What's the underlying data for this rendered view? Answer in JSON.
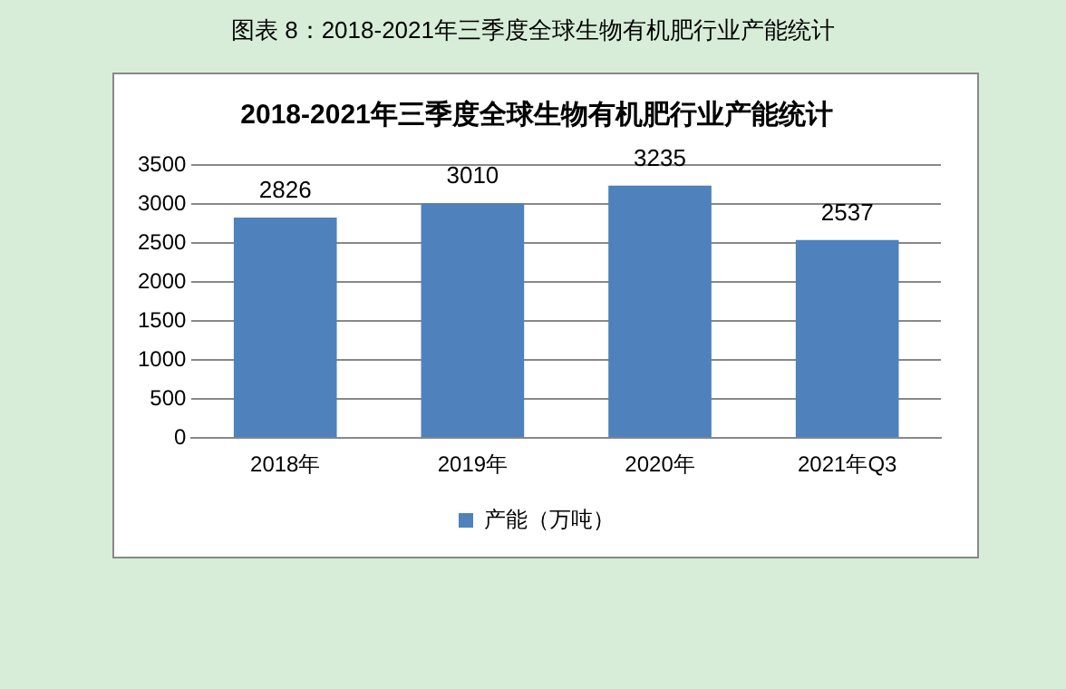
{
  "chart_data": {
    "type": "bar",
    "title": "2018-2021年三季度全球生物有机肥行业产能统计",
    "annotations": [
      "图表 8：2018-2021年三季度全球生物有机肥行业产能统计"
    ],
    "categories": [
      "2018年",
      "2019年",
      "2020年",
      "2021年Q3"
    ],
    "series": [
      {
        "name": "产能（万吨）",
        "color": "#4f81bd",
        "values": [
          2826,
          3010,
          3235,
          2537
        ]
      }
    ],
    "ylim": [
      0,
      3500
    ],
    "yticks": [
      0,
      500,
      1000,
      1500,
      2000,
      2500,
      3000,
      3500
    ],
    "grid": "y",
    "legend": "bottom",
    "data_labels": true
  }
}
